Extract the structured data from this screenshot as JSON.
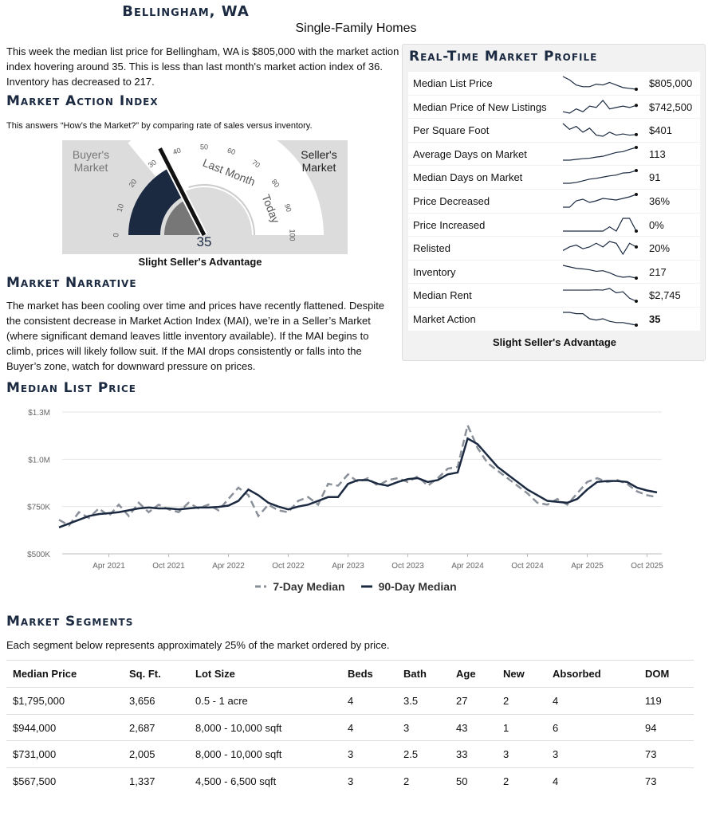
{
  "header": {
    "title": "Bellingham, WA",
    "subtitle": "Single-Family Homes"
  },
  "intro": "This week the median list price for Bellingham, WA is $805,000 with the market action index hovering around 35. This is less than last month's market action index of 36. Inventory has decreased to 217.",
  "market_action_index": {
    "heading": "Market Action Index",
    "description": "This answers “How’s the Market?” by comparing rate of sales versus inventory.",
    "gauge": {
      "buyer_label": "Buyer's Market",
      "seller_label": "Seller's Market",
      "ticks": [
        0,
        10,
        20,
        30,
        40,
        50,
        60,
        70,
        80,
        90,
        100
      ],
      "last_month_label": "Last Month",
      "today_label": "Today",
      "value": 35,
      "last_month_value": 36
    },
    "caption": "Slight Seller's Advantage"
  },
  "market_narrative": {
    "heading": "Market Narrative",
    "text": "The market has been cooling over time and prices have recently flattened. Despite the consistent decrease in Market Action Index (MAI), we’re in a Seller’s Market (where significant demand leaves little inventory available). If the MAI begins to climb, prices will likely follow suit. If the MAI drops consistently or falls into the Buyer’s zone, watch for downward pressure on prices."
  },
  "market_profile": {
    "heading": "Real-Time Market Profile",
    "rows": [
      {
        "label": "Median List Price",
        "value": "$805,000",
        "trend": [
          880000,
          860000,
          830000,
          820000,
          820000,
          835000,
          830000,
          845000,
          830000,
          815000,
          810000,
          805000
        ]
      },
      {
        "label": "Median Price of New Listings",
        "value": "$742,500",
        "trend": [
          720000,
          715000,
          730000,
          720000,
          740000,
          735000,
          760000,
          730000,
          735000,
          740000,
          735000,
          742500
        ]
      },
      {
        "label": "Per Square Foot",
        "value": "$401",
        "trend": [
          420,
          410,
          415,
          405,
          412,
          400,
          398,
          405,
          400,
          402,
          400,
          401
        ]
      },
      {
        "label": "Average Days on Market",
        "value": "113",
        "trend": [
          80,
          80,
          82,
          84,
          85,
          88,
          90,
          95,
          100,
          102,
          108,
          113
        ]
      },
      {
        "label": "Median Days on Market",
        "value": "91",
        "trend": [
          60,
          60,
          62,
          66,
          70,
          72,
          75,
          78,
          80,
          85,
          86,
          91
        ]
      },
      {
        "label": "Price Decreased",
        "value": "36%",
        "trend": [
          20,
          20,
          28,
          30,
          26,
          28,
          31,
          30,
          29,
          31,
          33,
          36
        ]
      },
      {
        "label": "Price Increased",
        "value": "0%",
        "trend": [
          0,
          0,
          0,
          0,
          0,
          0,
          0,
          1,
          0,
          3,
          3,
          0
        ]
      },
      {
        "label": "Relisted",
        "value": "20%",
        "trend": [
          18,
          20,
          21,
          19,
          20,
          22,
          20,
          23,
          22,
          16,
          22,
          20
        ]
      },
      {
        "label": "Inventory",
        "value": "217",
        "trend": [
          260,
          255,
          250,
          248,
          245,
          240,
          242,
          235,
          225,
          220,
          222,
          217
        ]
      },
      {
        "label": "Median Rent",
        "value": "$2,745",
        "trend": [
          2950,
          2950,
          2950,
          2950,
          2950,
          2955,
          2950,
          2980,
          2900,
          2920,
          2800,
          2745
        ]
      },
      {
        "label": "Market Action",
        "value": "35",
        "trend": [
          45,
          45,
          44,
          44,
          40,
          39,
          40,
          38,
          37,
          37,
          36,
          35
        ]
      }
    ],
    "caption": "Slight Seller's Advantage"
  },
  "chart_data": {
    "type": "line",
    "title": "Median List Price",
    "x": [
      "2020-11",
      "2020-12",
      "2021-01",
      "2021-02",
      "2021-03",
      "2021-04",
      "2021-05",
      "2021-06",
      "2021-07",
      "2021-08",
      "2021-09",
      "2021-10",
      "2021-11",
      "2021-12",
      "2022-01",
      "2022-02",
      "2022-03",
      "2022-04",
      "2022-05",
      "2022-06",
      "2022-07",
      "2022-08",
      "2022-09",
      "2022-10",
      "2022-11",
      "2022-12",
      "2023-01",
      "2023-02",
      "2023-03",
      "2023-04",
      "2023-05",
      "2023-06",
      "2023-07",
      "2023-08",
      "2023-09",
      "2023-10",
      "2023-11",
      "2023-12",
      "2024-01",
      "2024-02",
      "2024-03",
      "2024-04",
      "2024-05",
      "2024-06",
      "2024-07",
      "2024-08",
      "2024-09",
      "2024-10",
      "2024-11",
      "2024-12",
      "2025-01",
      "2025-02",
      "2025-03",
      "2025-04",
      "2025-05",
      "2025-06",
      "2025-07",
      "2025-08",
      "2025-09",
      "2025-10",
      "2025-11"
    ],
    "series": [
      {
        "name": "7-Day Median",
        "color": "#8a9099",
        "dash": true,
        "values": [
          680000,
          650000,
          720000,
          690000,
          740000,
          700000,
          760000,
          700000,
          770000,
          720000,
          760000,
          735000,
          720000,
          770000,
          740000,
          760000,
          730000,
          790000,
          850000,
          810000,
          700000,
          760000,
          730000,
          720000,
          780000,
          800000,
          760000,
          870000,
          860000,
          920000,
          880000,
          900000,
          860000,
          890000,
          900000,
          880000,
          910000,
          860000,
          900000,
          950000,
          960000,
          1180000,
          1060000,
          980000,
          940000,
          900000,
          860000,
          820000,
          770000,
          760000,
          790000,
          760000,
          820000,
          880000,
          900000,
          880000,
          890000,
          870000,
          830000,
          810000,
          800000
        ]
      },
      {
        "name": "90-Day Median",
        "color": "#1b2a41",
        "dash": false,
        "values": [
          640000,
          660000,
          680000,
          700000,
          710000,
          715000,
          720000,
          730000,
          740000,
          745000,
          740000,
          740000,
          735000,
          740000,
          745000,
          745000,
          748000,
          755000,
          780000,
          840000,
          810000,
          770000,
          750000,
          735000,
          750000,
          760000,
          780000,
          800000,
          800000,
          870000,
          890000,
          890000,
          870000,
          860000,
          880000,
          895000,
          900000,
          880000,
          890000,
          920000,
          930000,
          1110000,
          1080000,
          1020000,
          960000,
          920000,
          880000,
          840000,
          810000,
          780000,
          775000,
          770000,
          790000,
          840000,
          880000,
          885000,
          885000,
          880000,
          850000,
          835000,
          825000
        ]
      }
    ],
    "xlim": [
      "2020-11",
      "2025-12"
    ],
    "xticks": [
      {
        "value": "2021-04",
        "label": "Apr 2021"
      },
      {
        "value": "2021-10",
        "label": "Oct 2021"
      },
      {
        "value": "2022-04",
        "label": "Apr 2022"
      },
      {
        "value": "2022-10",
        "label": "Oct 2022"
      },
      {
        "value": "2023-04",
        "label": "Apr 2023"
      },
      {
        "value": "2023-10",
        "label": "Oct 2023"
      },
      {
        "value": "2024-04",
        "label": "Apr 2024"
      },
      {
        "value": "2024-10",
        "label": "Oct 2024"
      },
      {
        "value": "2025-04",
        "label": "Apr 2025"
      },
      {
        "value": "2025-10",
        "label": "Oct 2025"
      }
    ],
    "ylim": [
      500000,
      1250000
    ],
    "yticks": [
      {
        "value": 500000,
        "label": "$500K"
      },
      {
        "value": 750000,
        "label": "$750K"
      },
      {
        "value": 1000000,
        "label": "$1.0M"
      },
      {
        "value": 1250000,
        "label": "$1.3M"
      }
    ],
    "grid": true,
    "legend": "bottom"
  },
  "market_segments": {
    "heading": "Market Segments",
    "description": "Each segment below represents approximately 25% of the market ordered by price.",
    "table": {
      "columns": [
        "Median Price",
        "Sq. Ft.",
        "Lot Size",
        "Beds",
        "Bath",
        "Age",
        "New",
        "Absorbed",
        "DOM"
      ],
      "rows": [
        [
          "$1,795,000",
          "3,656",
          "0.5 - 1 acre",
          "4",
          "3.5",
          "27",
          "2",
          "4",
          "119"
        ],
        [
          "$944,000",
          "2,687",
          "8,000 - 10,000 sqft",
          "4",
          "3",
          "43",
          "1",
          "6",
          "94"
        ],
        [
          "$731,000",
          "2,005",
          "8,000 - 10,000 sqft",
          "3",
          "2.5",
          "33",
          "3",
          "3",
          "73"
        ],
        [
          "$567,500",
          "1,337",
          "4,500 - 6,500 sqft",
          "3",
          "2",
          "50",
          "2",
          "4",
          "73"
        ]
      ]
    }
  }
}
